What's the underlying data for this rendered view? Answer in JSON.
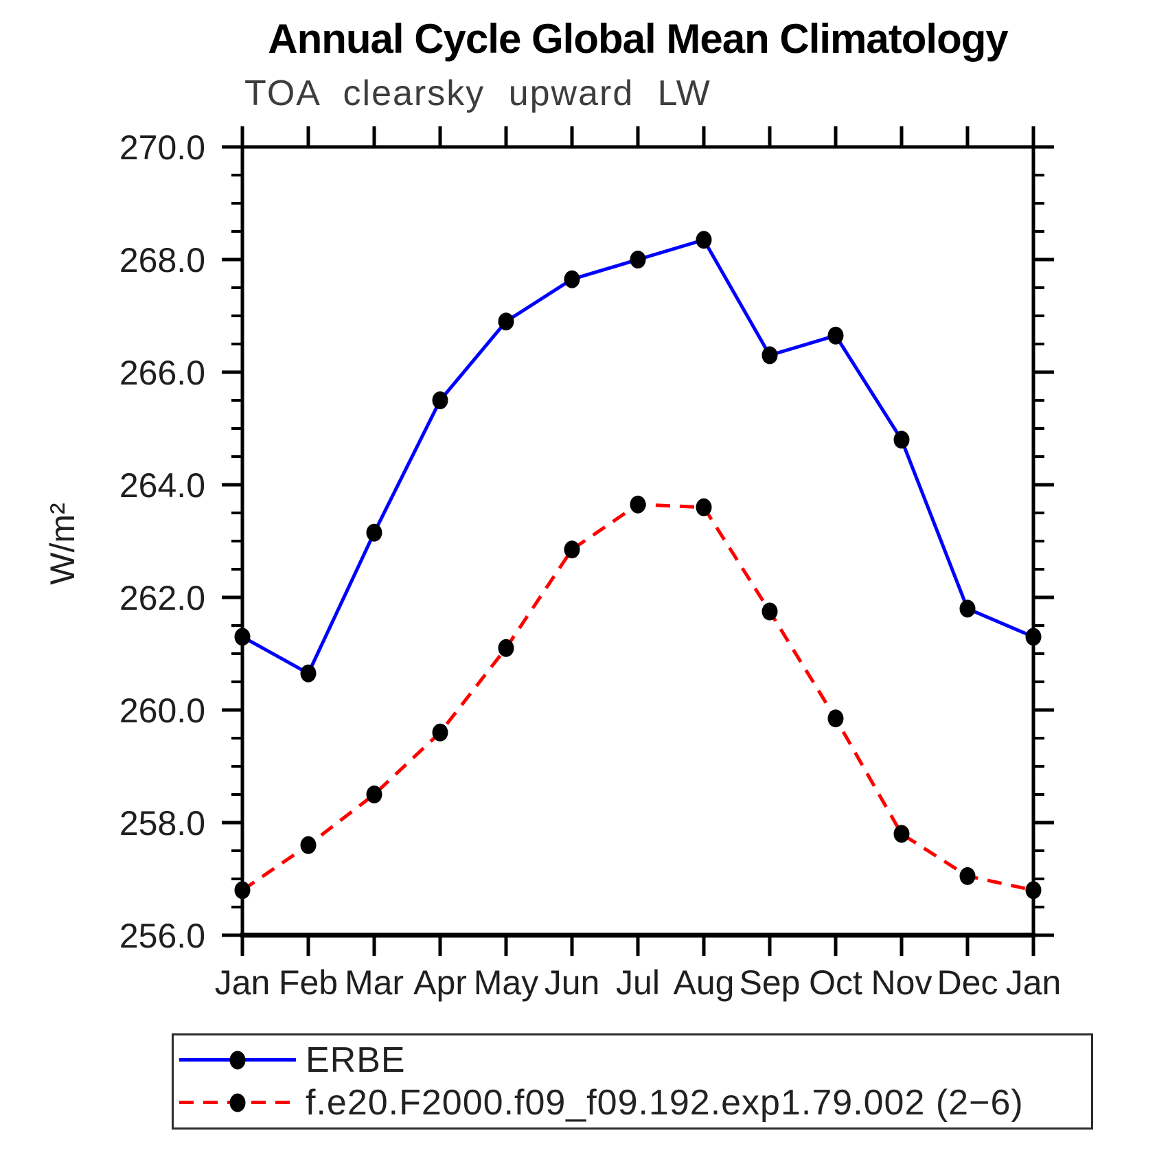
{
  "chart_data": {
    "type": "line",
    "title": "Annual Cycle Global Mean Climatology",
    "subtitle": "TOA clearsky upward LW",
    "ylabel": "W/m²",
    "x_categories": [
      "Jan",
      "Feb",
      "Mar",
      "Apr",
      "May",
      "Jun",
      "Jul",
      "Aug",
      "Sep",
      "Oct",
      "Nov",
      "Dec",
      "Jan"
    ],
    "y_axis": {
      "min": 256.0,
      "max": 270.0,
      "major_step": 2.0,
      "minor_step": 0.5,
      "tick_label_decimals": 1
    },
    "grid": false,
    "legend_position": "bottom-left-box",
    "series": [
      {
        "name": "ERBE",
        "color": "#0000ff",
        "line_style": "solid",
        "marker": "circle",
        "marker_color": "#000000",
        "values": [
          261.3,
          260.65,
          263.15,
          265.5,
          266.9,
          267.65,
          268.0,
          268.35,
          266.3,
          266.65,
          264.8,
          261.8,
          261.3
        ]
      },
      {
        "name": "f.e20.F2000.f09_f09.192.exp1.79.002 (2−6)",
        "color": "#ff0000",
        "line_style": "dashed",
        "marker": "circle",
        "marker_color": "#000000",
        "values": [
          256.8,
          257.6,
          258.5,
          259.6,
          261.1,
          262.85,
          263.65,
          263.6,
          261.75,
          259.85,
          257.8,
          257.05,
          256.8
        ]
      }
    ]
  }
}
